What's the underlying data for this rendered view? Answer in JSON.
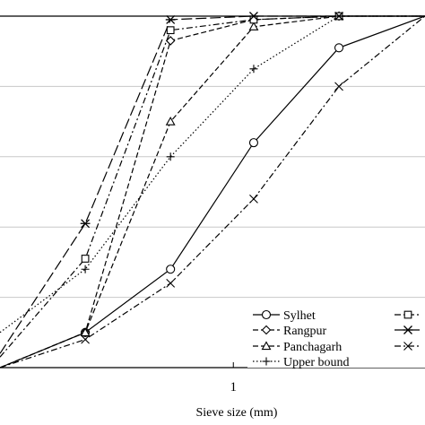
{
  "chart_data": {
    "type": "line",
    "xscale": "log",
    "xlabel": "Sieve size (mm)",
    "xlim": [
      0.15,
      4.75
    ],
    "ylim": [
      0,
      100
    ],
    "x_ticks": [
      {
        "value": 1,
        "label": "1"
      }
    ],
    "y_gridlines": [
      20,
      40,
      60,
      80,
      100
    ],
    "grid": "horizontal",
    "legend_position": "bottom-right",
    "series": [
      {
        "name": "Sylhet",
        "line_style": "solid",
        "marker": "circle",
        "x": [
          0.15,
          0.3,
          0.6,
          1.18,
          2.36,
          4.75
        ],
        "y": [
          0,
          10,
          28,
          64,
          91,
          100
        ]
      },
      {
        "name": "Rangpur",
        "line_style": "dashed",
        "marker": "diamond",
        "x": [
          0.15,
          0.3,
          0.6,
          1.18,
          2.36,
          4.75
        ],
        "y": [
          0,
          10,
          93,
          99,
          100,
          100
        ]
      },
      {
        "name": "Panchagarh",
        "line_style": "dashed",
        "marker": "triangle",
        "x": [
          0.15,
          0.3,
          0.6,
          1.18,
          2.36,
          4.75
        ],
        "y": [
          0,
          10,
          70,
          97,
          100,
          100
        ]
      },
      {
        "name": "Upper bound",
        "line_style": "dotted",
        "marker": "plus",
        "x": [
          0.15,
          0.3,
          0.6,
          1.18,
          2.36,
          4.75
        ],
        "y": [
          10,
          28,
          60,
          85,
          100,
          100
        ]
      },
      {
        "name": "",
        "line_style": "dash-dot",
        "marker": "square",
        "x": [
          0.15,
          0.3,
          0.6,
          1.18,
          2.36,
          4.75
        ],
        "y": [
          3,
          31,
          96,
          99,
          100,
          100
        ]
      },
      {
        "name": "",
        "line_style": "long-dash",
        "marker": "star",
        "x": [
          0.15,
          0.3,
          0.6,
          1.18,
          2.36,
          4.75
        ],
        "y": [
          4,
          41,
          99,
          100,
          100,
          100
        ]
      },
      {
        "name": "",
        "line_style": "dash-dot",
        "marker": "cross",
        "x": [
          0.15,
          0.3,
          0.6,
          1.18,
          2.36,
          4.75
        ],
        "y": [
          0,
          8,
          24,
          48,
          80,
          100
        ]
      }
    ]
  }
}
